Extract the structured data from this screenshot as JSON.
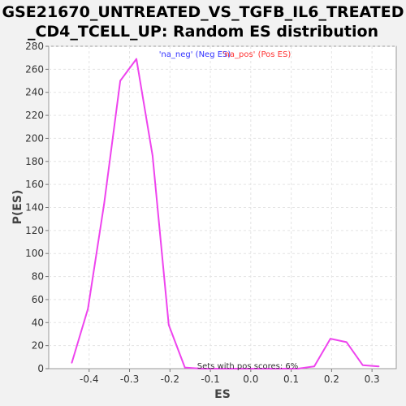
{
  "title_line1": "GSE21670_UNTREATED_VS_TGFB_IL6_TREATED",
  "title_line2": "_CD4_TCELL_UP: Random ES distribution",
  "chart_data": {
    "type": "line",
    "xlabel": "ES",
    "ylabel": "P(ES)",
    "xlim": [
      -0.5,
      0.36
    ],
    "ylim": [
      0,
      280
    ],
    "xticks": [
      -0.4,
      -0.3,
      -0.2,
      -0.1,
      0.0,
      0.1,
      0.2,
      0.3
    ],
    "xtick_labels": [
      "-0.4",
      "-0.3",
      "-0.2",
      "-0.1",
      "0.0",
      "0.1",
      "0.2",
      "0.3"
    ],
    "yticks": [
      0,
      20,
      40,
      60,
      80,
      100,
      120,
      140,
      160,
      180,
      200,
      220,
      240,
      260,
      280
    ],
    "grid": true,
    "legend": [
      {
        "label": "'na_neg' (Neg ES)",
        "color": "#3333ff"
      },
      {
        "label": "'na_pos' (Pos ES)",
        "color": "#ff3333"
      }
    ],
    "annotation": "Sets with pos scores: 6%",
    "series": [
      {
        "color": "#ee44ee",
        "x": [
          -0.443,
          -0.403,
          -0.363,
          -0.323,
          -0.283,
          -0.243,
          -0.203,
          -0.163,
          -0.123,
          -0.083,
          -0.043,
          -0.003,
          0.037,
          0.077,
          0.117,
          0.157,
          0.197,
          0.237,
          0.277,
          0.317
        ],
        "y": [
          5,
          52,
          143,
          250,
          269,
          185,
          38,
          1,
          0,
          0,
          0,
          0,
          0,
          0,
          0,
          2,
          26,
          23,
          3,
          2
        ]
      }
    ]
  }
}
